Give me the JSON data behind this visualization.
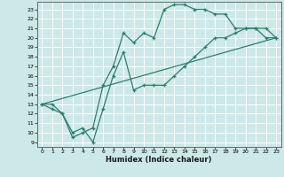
{
  "title": "",
  "xlabel": "Humidex (Indice chaleur)",
  "ylabel": "",
  "bg_color": "#cce8e8",
  "grid_color": "#ffffff",
  "line_color": "#2e7d6e",
  "xlim": [
    -0.5,
    23.5
  ],
  "ylim": [
    8.5,
    23.8
  ],
  "xticks": [
    0,
    1,
    2,
    3,
    4,
    5,
    6,
    7,
    8,
    9,
    10,
    11,
    12,
    13,
    14,
    15,
    16,
    17,
    18,
    19,
    20,
    21,
    22,
    23
  ],
  "yticks": [
    9,
    10,
    11,
    12,
    13,
    14,
    15,
    16,
    17,
    18,
    19,
    20,
    21,
    22,
    23
  ],
  "line1_x": [
    0,
    1,
    2,
    3,
    4,
    5,
    6,
    7,
    8,
    9,
    10,
    11,
    12,
    13,
    14,
    15,
    16,
    17,
    18,
    19,
    20,
    21,
    22,
    23
  ],
  "line1_y": [
    13,
    12.5,
    12,
    9.5,
    10,
    10.5,
    15,
    17,
    20.5,
    19.5,
    20.5,
    20,
    23,
    23.5,
    23.5,
    23,
    23,
    22.5,
    22.5,
    21,
    21,
    21,
    20,
    20
  ],
  "line2_x": [
    0,
    1,
    2,
    3,
    4,
    5,
    6,
    7,
    8,
    9,
    10,
    11,
    12,
    13,
    14,
    15,
    16,
    17,
    18,
    19,
    20,
    21,
    22,
    23
  ],
  "line2_y": [
    13,
    13,
    12,
    10,
    10.5,
    9,
    12.5,
    16,
    18.5,
    14.5,
    15,
    15,
    15,
    16,
    17,
    18,
    19,
    20,
    20,
    20.5,
    21,
    21,
    21,
    20
  ],
  "line3_x": [
    0,
    23
  ],
  "line3_y": [
    13,
    20
  ]
}
